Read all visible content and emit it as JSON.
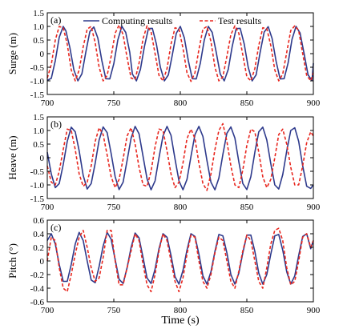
{
  "chart_data": [
    {
      "type": "line",
      "panel_label": "(a)",
      "ylabel": "Surge (m)",
      "xlim": [
        700,
        900
      ],
      "ylim": [
        -1.5,
        1.5
      ],
      "xticks": [
        "700",
        "750",
        "800",
        "850",
        "900"
      ],
      "yticks": [
        "1.5",
        "1.0",
        "0.5",
        "0",
        "-0.5",
        "-1.0",
        "-1.5"
      ],
      "legend": {
        "placement": "top-center"
      },
      "series": [
        {
          "name": "Computing results",
          "color": "#2e3a8c",
          "style": "solid",
          "x": [
            700,
            703,
            706,
            709,
            712,
            714,
            717,
            720,
            723,
            726,
            729,
            732,
            735,
            738,
            741,
            744,
            747,
            750,
            753,
            756,
            759,
            762,
            764,
            767,
            770,
            773,
            776,
            779,
            782,
            785,
            788,
            791,
            794,
            797,
            800,
            803,
            806,
            809,
            812,
            815,
            818,
            821,
            824,
            827,
            830,
            833,
            836,
            839,
            842,
            845,
            848,
            851,
            854,
            857,
            860,
            863,
            866,
            869,
            872,
            875,
            878,
            881,
            884,
            887,
            890,
            893,
            896,
            899,
            900
          ],
          "y": [
            -0.98,
            -0.91,
            -0.26,
            0.6,
            1.0,
            0.84,
            0.22,
            -0.6,
            -1.0,
            -0.74,
            0.06,
            0.81,
            0.98,
            0.57,
            -0.26,
            -0.92,
            -0.93,
            -0.37,
            0.5,
            1.0,
            0.78,
            0.05,
            -0.75,
            -1.0,
            -0.58,
            0.26,
            0.92,
            0.93,
            0.36,
            -0.5,
            -1.0,
            -0.78,
            -0.05,
            0.75,
            1.0,
            0.58,
            -0.26,
            -0.92,
            -0.93,
            -0.36,
            0.5,
            1.0,
            0.78,
            0.05,
            -0.75,
            -1.0,
            -0.58,
            0.26,
            0.92,
            0.93,
            0.36,
            -0.5,
            -1.0,
            -0.78,
            0.05,
            0.79,
            0.99,
            0.56,
            -0.28,
            -0.93,
            -0.92,
            -0.34,
            0.53,
            1.0,
            0.76,
            0.01,
            -0.78,
            -0.99,
            -0.35
          ]
        },
        {
          "name": "Test results",
          "color": "#e8271f",
          "style": "dashed",
          "x": [
            700,
            703,
            706,
            709,
            712,
            715,
            718,
            721,
            724,
            727,
            730,
            733,
            736,
            739,
            742,
            745,
            748,
            751,
            754,
            757,
            760,
            763,
            766,
            769,
            772,
            775,
            778,
            781,
            784,
            787,
            790,
            793,
            796,
            799,
            802,
            805,
            808,
            811,
            814,
            817,
            820,
            823,
            826,
            829,
            832,
            835,
            838,
            841,
            844,
            847,
            850,
            853,
            856,
            859,
            862,
            865,
            868,
            871,
            874,
            877,
            880,
            883,
            886,
            889,
            892,
            895,
            898,
            900
          ],
          "y": [
            -0.9,
            -0.4,
            0.5,
            1.0,
            0.95,
            0.35,
            -0.6,
            -1.0,
            -0.6,
            0.25,
            0.9,
            1.0,
            0.4,
            -0.5,
            -1.0,
            -0.8,
            -0.1,
            0.75,
            1.05,
            0.7,
            -0.15,
            -0.9,
            -0.95,
            -0.35,
            0.55,
            1.02,
            0.8,
            0.0,
            -0.8,
            -1.0,
            -0.55,
            0.35,
            0.95,
            0.9,
            0.2,
            -0.7,
            -1.02,
            -0.7,
            0.15,
            0.9,
            1.0,
            0.45,
            -0.5,
            -1.0,
            -0.85,
            -0.1,
            0.7,
            1.02,
            0.75,
            -0.05,
            -0.85,
            -1.0,
            -0.55,
            0.3,
            0.95,
            0.92,
            0.3,
            -0.6,
            -1.0,
            -0.75,
            0.05,
            0.85,
            1.02,
            0.85,
            0.0,
            -0.8,
            -1.0,
            -0.7
          ]
        }
      ]
    },
    {
      "type": "line",
      "panel_label": "(b)",
      "ylabel": "Heave (m)",
      "xlim": [
        700,
        900
      ],
      "ylim": [
        -1.5,
        1.5
      ],
      "xticks": [
        "700",
        "750",
        "800",
        "850",
        "900"
      ],
      "yticks": [
        "1.5",
        "1.0",
        "0.5",
        "0",
        "-0.5",
        "-1.0",
        "-1.5"
      ],
      "series": [
        {
          "name": "Computing results",
          "color": "#2e3a8c",
          "style": "solid",
          "x": [
            700,
            703,
            706,
            709,
            712,
            715,
            718,
            721,
            724,
            727,
            730,
            733,
            736,
            739,
            742,
            745,
            748,
            751,
            754,
            757,
            760,
            763,
            766,
            769,
            772,
            775,
            778,
            781,
            784,
            787,
            790,
            793,
            796,
            799,
            802,
            805,
            808,
            811,
            814,
            817,
            820,
            823,
            826,
            829,
            832,
            835,
            838,
            841,
            844,
            847,
            850,
            853,
            856,
            859,
            862,
            865,
            868,
            871,
            874,
            877,
            880,
            883,
            886,
            889,
            892,
            895,
            898,
            900
          ],
          "y": [
            0.2,
            -0.6,
            -1.1,
            -0.95,
            -0.25,
            0.6,
            1.12,
            0.95,
            0.25,
            -0.65,
            -1.15,
            -0.95,
            -0.2,
            0.65,
            1.13,
            0.92,
            0.15,
            -0.7,
            -1.17,
            -0.9,
            -0.1,
            0.72,
            1.15,
            0.88,
            0.05,
            -0.78,
            -1.18,
            -0.85,
            0.0,
            0.8,
            1.15,
            0.82,
            -0.05,
            -0.85,
            -1.18,
            -0.8,
            0.05,
            0.85,
            1.15,
            0.78,
            -0.1,
            -0.9,
            -1.18,
            -0.75,
            0.12,
            0.9,
            1.13,
            0.72,
            -0.15,
            -0.95,
            -1.17,
            -0.7,
            0.2,
            0.95,
            1.12,
            0.65,
            -0.22,
            -1.0,
            -1.15,
            -0.62,
            0.25,
            1.0,
            1.1,
            0.6,
            -0.3,
            -1.05,
            -1.13,
            -1.0
          ]
        },
        {
          "name": "Test results",
          "color": "#e8271f",
          "style": "dashed",
          "x": [
            700,
            703,
            706,
            709,
            712,
            715,
            718,
            721,
            724,
            727,
            730,
            733,
            736,
            739,
            742,
            745,
            748,
            751,
            754,
            757,
            760,
            763,
            766,
            769,
            772,
            775,
            778,
            781,
            784,
            787,
            790,
            793,
            796,
            799,
            802,
            805,
            808,
            811,
            814,
            817,
            820,
            823,
            826,
            829,
            832,
            835,
            838,
            841,
            844,
            847,
            850,
            853,
            856,
            859,
            862,
            865,
            868,
            871,
            874,
            877,
            880,
            883,
            886,
            889,
            892,
            895,
            898,
            900
          ],
          "y": [
            -0.3,
            -0.9,
            -1.0,
            -0.5,
            0.3,
            1.05,
            1.0,
            0.3,
            -0.6,
            -1.05,
            -0.9,
            -0.3,
            0.6,
            1.1,
            0.85,
            0.1,
            -0.7,
            -1.1,
            -0.8,
            -0.05,
            0.8,
            1.1,
            0.5,
            -0.35,
            -1.0,
            -1.05,
            -0.5,
            0.4,
            1.05,
            1.0,
            0.25,
            -0.6,
            -1.1,
            -0.9,
            -0.2,
            0.7,
            1.05,
            0.7,
            -0.2,
            -0.95,
            -1.2,
            -0.6,
            0.3,
            1.0,
            1.25,
            0.6,
            -0.3,
            -1.0,
            -1.1,
            -0.45,
            0.45,
            1.05,
            0.95,
            0.2,
            -0.7,
            -1.1,
            -0.8,
            0.0,
            0.85,
            1.05,
            0.5,
            -0.35,
            -1.0,
            -1.0,
            -0.3,
            0.55,
            0.95,
            0.8
          ]
        }
      ]
    },
    {
      "type": "line",
      "panel_label": "(c)",
      "ylabel": "Pitch (°)",
      "xlabel": "Time (s)",
      "xlim": [
        700,
        900
      ],
      "ylim": [
        -0.6,
        0.6
      ],
      "xticks": [
        "700",
        "750",
        "800",
        "850",
        "900"
      ],
      "yticks": [
        "0.6",
        "0.4",
        "0.2",
        "0",
        "-0.2",
        "-0.4",
        "-0.6"
      ],
      "series": [
        {
          "name": "Computing results",
          "color": "#2e3a8c",
          "style": "solid",
          "x": [
            700,
            703,
            706,
            709,
            712,
            715,
            718,
            721,
            724,
            727,
            730,
            733,
            736,
            739,
            742,
            745,
            748,
            751,
            754,
            757,
            760,
            763,
            766,
            769,
            772,
            775,
            778,
            781,
            784,
            787,
            790,
            793,
            796,
            799,
            802,
            805,
            808,
            811,
            814,
            817,
            820,
            823,
            826,
            829,
            832,
            835,
            838,
            841,
            844,
            847,
            850,
            853,
            856,
            859,
            862,
            865,
            868,
            871,
            874,
            877,
            880,
            883,
            886,
            889,
            892,
            895,
            898,
            900
          ],
          "y": [
            0.3,
            0.4,
            0.25,
            -0.05,
            -0.3,
            -0.3,
            -0.05,
            0.25,
            0.42,
            0.3,
            0.0,
            -0.28,
            -0.32,
            -0.08,
            0.22,
            0.42,
            0.32,
            0.02,
            -0.27,
            -0.33,
            -0.1,
            0.2,
            0.41,
            0.34,
            0.05,
            -0.25,
            -0.33,
            -0.12,
            0.18,
            0.4,
            0.35,
            0.08,
            -0.23,
            -0.34,
            -0.14,
            0.16,
            0.4,
            0.36,
            0.1,
            -0.22,
            -0.34,
            -0.16,
            0.14,
            0.39,
            0.37,
            0.12,
            -0.2,
            -0.34,
            -0.18,
            0.12,
            0.38,
            0.38,
            0.14,
            -0.18,
            -0.34,
            -0.2,
            0.1,
            0.37,
            0.39,
            0.16,
            -0.16,
            -0.34,
            -0.22,
            0.08,
            0.36,
            0.4,
            0.18,
            0.3
          ]
        },
        {
          "name": "Test results",
          "color": "#e8271f",
          "style": "dashed",
          "x": [
            700,
            703,
            706,
            709,
            712,
            715,
            718,
            721,
            724,
            727,
            730,
            733,
            736,
            739,
            742,
            745,
            748,
            751,
            754,
            757,
            760,
            763,
            766,
            769,
            772,
            775,
            778,
            781,
            784,
            787,
            790,
            793,
            796,
            799,
            802,
            805,
            808,
            811,
            814,
            817,
            820,
            823,
            826,
            829,
            832,
            835,
            838,
            841,
            844,
            847,
            850,
            853,
            856,
            859,
            862,
            865,
            868,
            871,
            874,
            877,
            880,
            883,
            886,
            889,
            892,
            895,
            898,
            900
          ],
          "y": [
            0.0,
            0.35,
            0.3,
            -0.1,
            -0.4,
            -0.45,
            -0.2,
            0.1,
            0.35,
            0.45,
            0.2,
            -0.1,
            -0.3,
            -0.25,
            0.05,
            0.45,
            0.45,
            0.0,
            -0.35,
            -0.35,
            -0.1,
            0.15,
            0.4,
            0.3,
            -0.05,
            -0.35,
            -0.45,
            -0.2,
            0.15,
            0.4,
            0.3,
            0.0,
            -0.3,
            -0.45,
            -0.25,
            0.1,
            0.38,
            0.35,
            0.0,
            -0.3,
            -0.4,
            -0.2,
            0.12,
            0.35,
            0.3,
            0.0,
            -0.3,
            -0.4,
            -0.15,
            0.15,
            0.38,
            0.3,
            0.0,
            -0.3,
            -0.4,
            -0.1,
            0.25,
            0.45,
            0.48,
            0.3,
            -0.1,
            -0.35,
            -0.3,
            0.0,
            0.35,
            0.4,
            0.2,
            0.3
          ]
        }
      ]
    }
  ]
}
